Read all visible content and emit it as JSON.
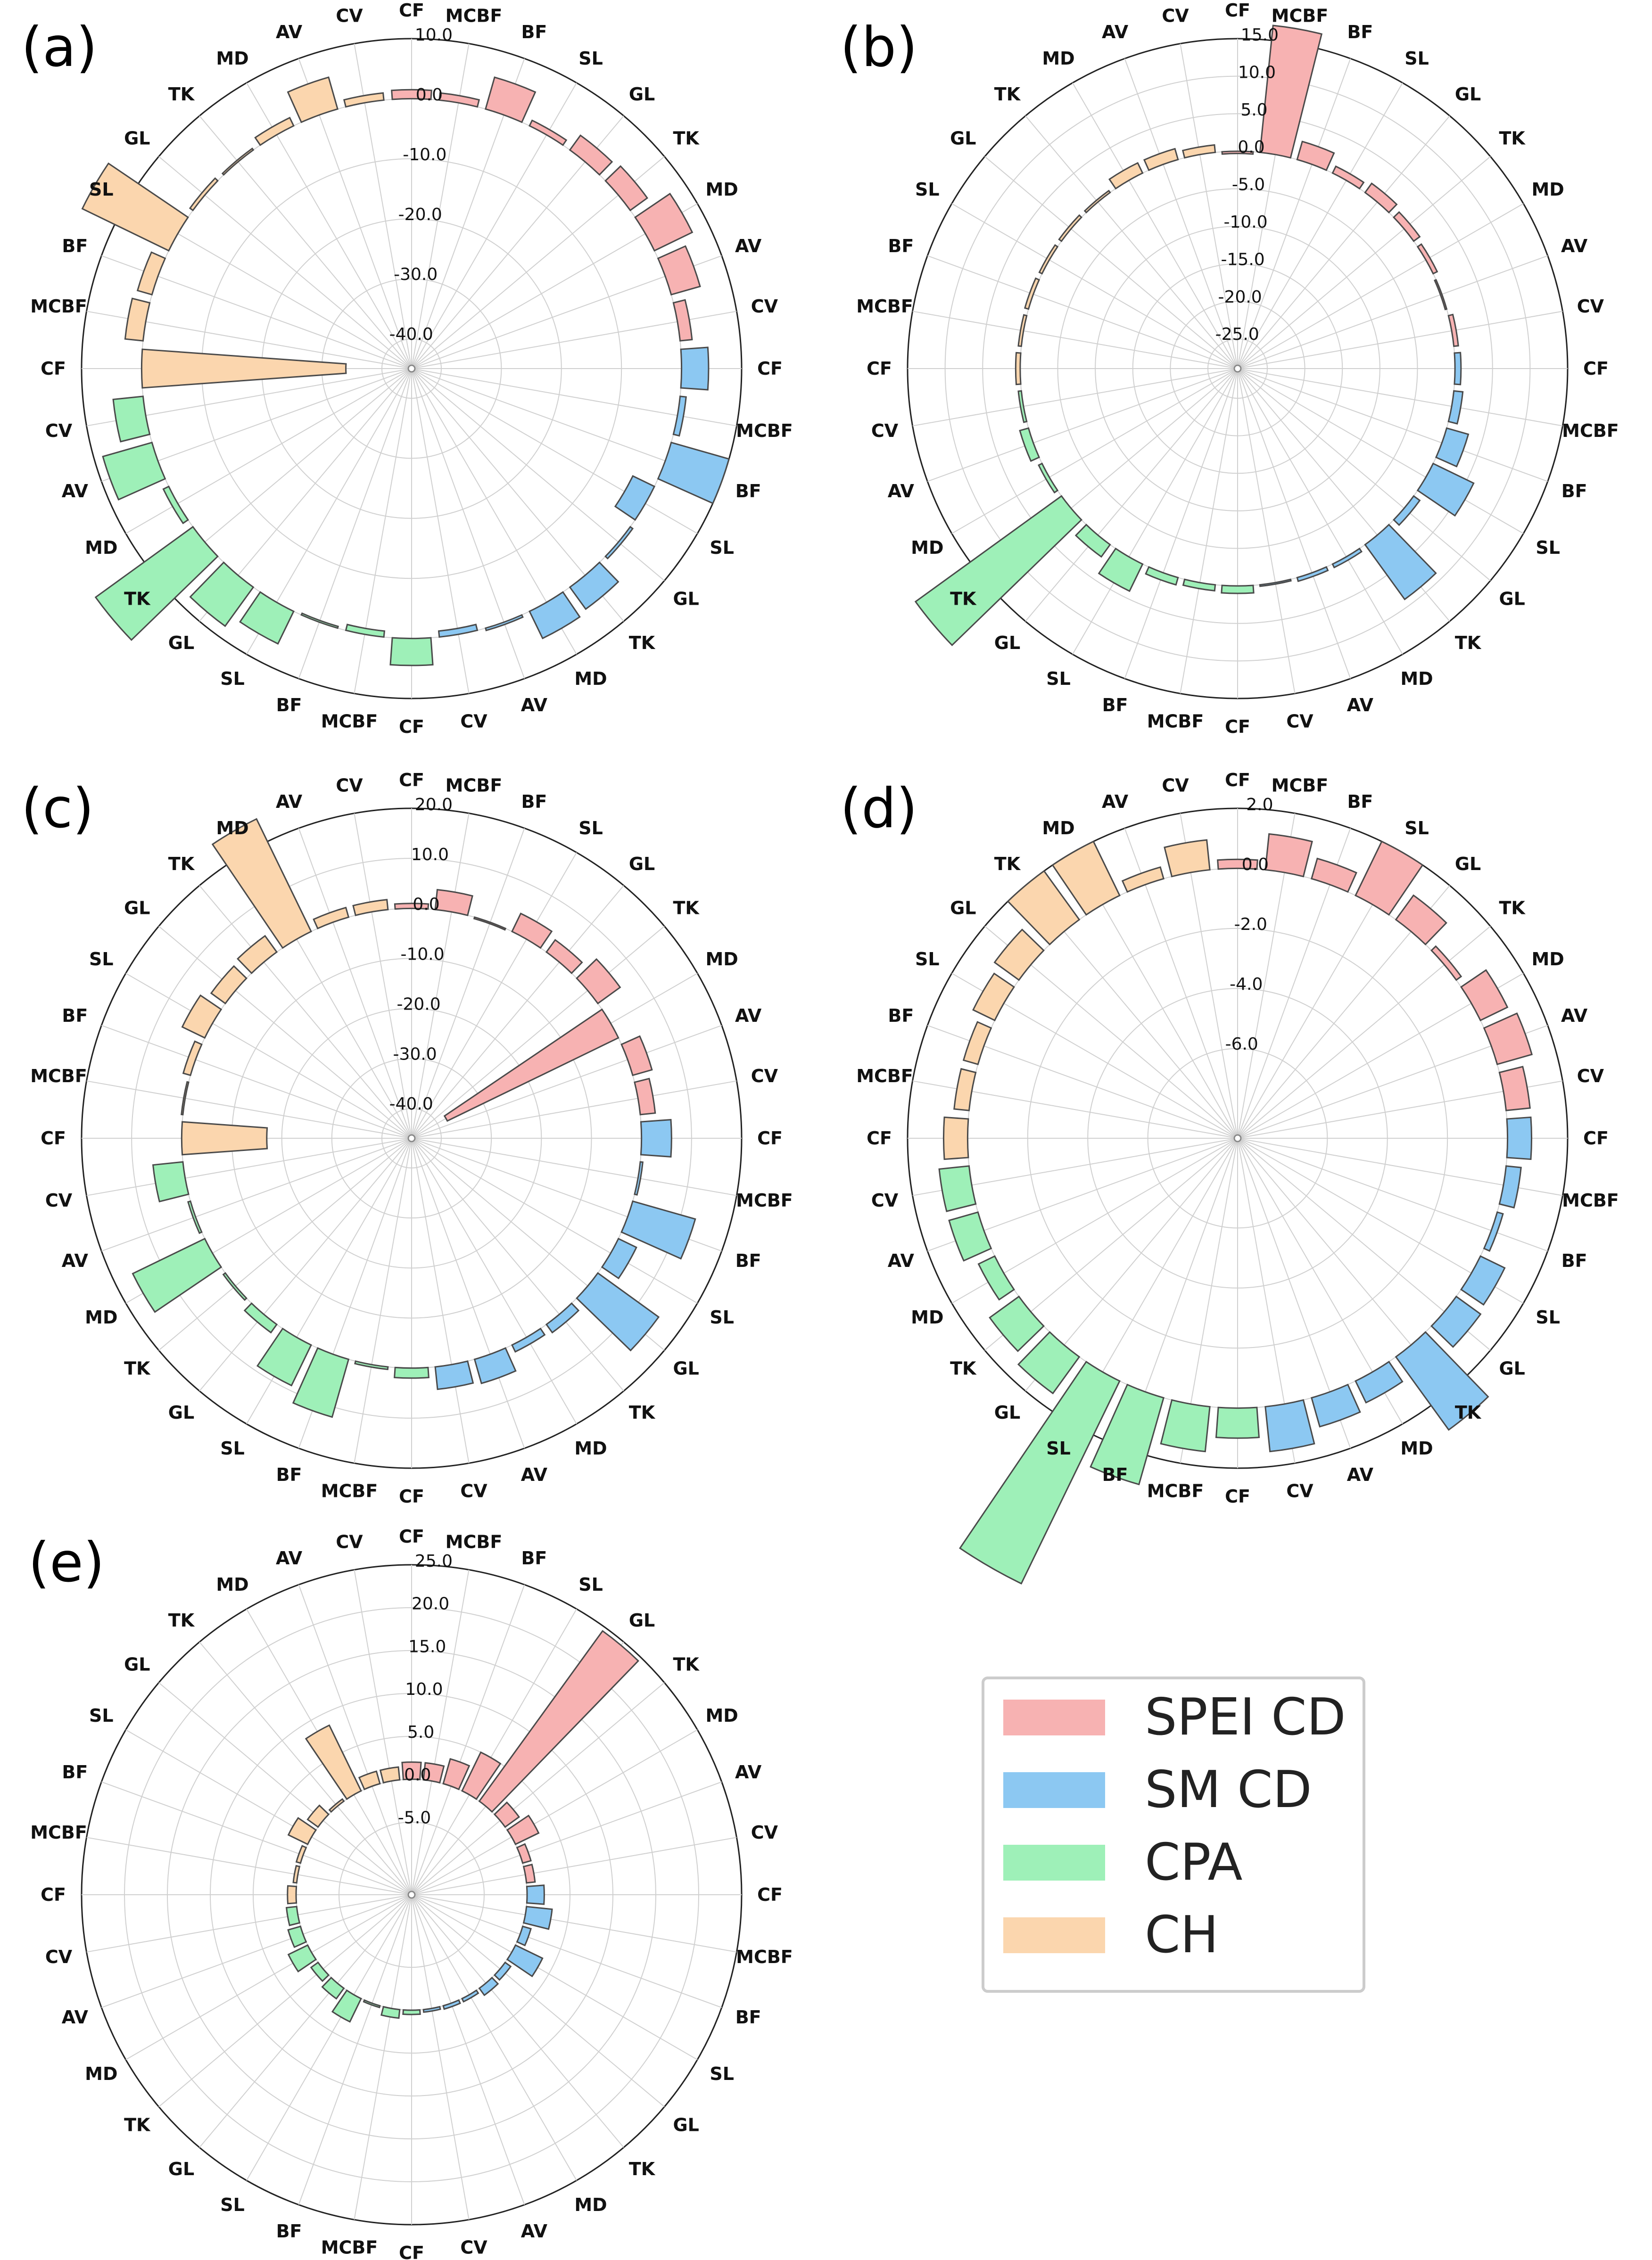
{
  "categories": [
    "CF",
    "MCBF",
    "BF",
    "SL",
    "GL",
    "TK",
    "MD",
    "AV",
    "CV"
  ],
  "groups": [
    {
      "name": "SPEI CD",
      "color": "#f7b2b2"
    },
    {
      "name": "SM CD",
      "color": "#8cc8f2"
    },
    {
      "name": "CPA",
      "color": "#9ef0b8"
    },
    {
      "name": "CH",
      "color": "#fbd6ae"
    }
  ],
  "legend": [
    "SPEI CD",
    "SM CD",
    "CPA",
    "CH"
  ],
  "chart_data": [
    {
      "panel": "(a)",
      "type": "polar-bar",
      "rlim": [
        -40,
        10
      ],
      "zero": 0,
      "rticks": [
        10,
        0,
        -10,
        -20,
        -30,
        -40
      ],
      "rtick_labels": [
        "10.0",
        "0.0",
        "-10.0",
        "-20.0",
        "-30.0",
        "-40.0"
      ],
      "series": [
        {
          "name": "SPEI CD",
          "values": [
            1.5,
            1.2,
            5.5,
            1.0,
            3.0,
            3.5,
            7.0,
            5.0,
            2.0
          ]
        },
        {
          "name": "SM CD",
          "values": [
            4.5,
            1.0,
            10.0,
            -4.0,
            0.5,
            4.5,
            5.0,
            0.4,
            -1.0
          ]
        },
        {
          "name": "CPA",
          "values": [
            4.5,
            -1.0,
            -0.3,
            6.0,
            8.0,
            20.0,
            1.0,
            8.5,
            5.0
          ]
        },
        {
          "name": "CH",
          "values": [
            -34.0,
            3.0,
            2.5,
            16.0,
            0.6,
            0.3,
            1.5,
            5.5,
            1.2
          ]
        }
      ]
    },
    {
      "panel": "(b)",
      "type": "polar-bar",
      "rlim": [
        -25,
        15
      ],
      "zero": 0,
      "rticks": [
        15,
        10,
        5,
        0,
        -5,
        -10,
        -15,
        -20,
        -25
      ],
      "rtick_labels": [
        "15.0",
        "10.0",
        "5.0",
        "0.0",
        "-5.0",
        "-10.0",
        "-15.0",
        "-20.0",
        "-25.0"
      ],
      "series": [
        {
          "name": "SPEI CD",
          "values": [
            -0.3,
            17.0,
            2.5,
            1.0,
            1.5,
            1.0,
            0.6,
            -0.2,
            0.6
          ]
        },
        {
          "name": "SM CD",
          "values": [
            0.8,
            1.2,
            3.0,
            6.0,
            1.0,
            9.0,
            0.5,
            0.5,
            0.2
          ]
        },
        {
          "name": "CPA",
          "values": [
            1.0,
            0.8,
            1.0,
            4.0,
            2.0,
            24.0,
            0.5,
            1.2,
            0.4
          ]
        },
        {
          "name": "CH",
          "values": [
            0.6,
            0.4,
            0.5,
            0.4,
            0.4,
            0.3,
            1.5,
            1.5,
            1.0
          ]
        }
      ]
    },
    {
      "panel": "(c)",
      "type": "polar-bar",
      "rlim": [
        -40,
        20
      ],
      "zero": 0,
      "rticks": [
        20,
        10,
        0,
        -10,
        -20,
        -30,
        -40
      ],
      "rtick_labels": [
        "20.0",
        "10.0",
        "0.0",
        "-10.0",
        "-20.0",
        "-30.0",
        "-40.0"
      ],
      "series": [
        {
          "name": "SPEI CD",
          "values": [
            1.0,
            4.0,
            -0.3,
            4.0,
            3.0,
            5.5,
            -38.0,
            4.0,
            3.0
          ]
        },
        {
          "name": "SM CD",
          "values": [
            6.0,
            0.5,
            13.0,
            4.0,
            15.0,
            2.0,
            1.5,
            5.0,
            4.5
          ]
        },
        {
          "name": "CPA",
          "values": [
            2.0,
            0.5,
            12.0,
            9.0,
            2.0,
            0.5,
            16.0,
            0.5,
            6.0
          ]
        },
        {
          "name": "CH",
          "values": [
            -17.0,
            0.3,
            1.5,
            5.0,
            3.5,
            4.0,
            25.0,
            2.0,
            2.0
          ]
        }
      ]
    },
    {
      "panel": "(d)",
      "type": "polar-bar",
      "rlim": [
        -8,
        2
      ],
      "zero": 0,
      "rticks": [
        2,
        0,
        -2,
        -4,
        -6
      ],
      "rtick_labels": [
        "2.0",
        "0.0",
        "-2.0",
        "-4.0",
        "-6.0"
      ],
      "series": [
        {
          "name": "SPEI CD",
          "values": [
            0.3,
            1.2,
            0.7,
            2.0,
            1.0,
            0.2,
            1.0,
            1.2,
            0.8
          ]
        },
        {
          "name": "SM CD",
          "values": [
            0.8,
            0.5,
            0.2,
            0.9,
            1.0,
            3.0,
            0.8,
            1.0,
            1.5
          ]
        },
        {
          "name": "CPA",
          "values": [
            1.0,
            1.5,
            3.0,
            7.5,
            1.5,
            1.2,
            0.6,
            1.0,
            1.0
          ]
        },
        {
          "name": "CH",
          "values": [
            0.8,
            0.5,
            0.5,
            0.8,
            1.0,
            2.0,
            2.0,
            0.4,
            1.0
          ]
        }
      ]
    },
    {
      "panel": "(e)",
      "type": "polar-bar",
      "rlim": [
        -10,
        25
      ],
      "zero": 0,
      "rticks": [
        25,
        20,
        15,
        10,
        5,
        0,
        -5
      ],
      "rtick_labels": [
        "25.0",
        "20.0",
        "15.0",
        "10.0",
        "5.0",
        "0.0",
        "-5.0"
      ],
      "series": [
        {
          "name": "SPEI CD",
          "values": [
            2.0,
            2.0,
            3.0,
            5.0,
            24.5,
            2.0,
            3.0,
            1.0,
            1.0
          ]
        },
        {
          "name": "SM CD",
          "values": [
            2.0,
            3.0,
            1.0,
            3.5,
            0.8,
            1.0,
            0.4,
            0.4,
            0.3
          ]
        },
        {
          "name": "CPA",
          "values": [
            0.5,
            1.0,
            0.2,
            3.0,
            1.5,
            1.0,
            2.5,
            1.5,
            1.2
          ]
        },
        {
          "name": "CH",
          "values": [
            1.0,
            0.4,
            0.5,
            2.5,
            1.5,
            0.3,
            8.5,
            1.5,
            1.5
          ]
        }
      ]
    }
  ]
}
